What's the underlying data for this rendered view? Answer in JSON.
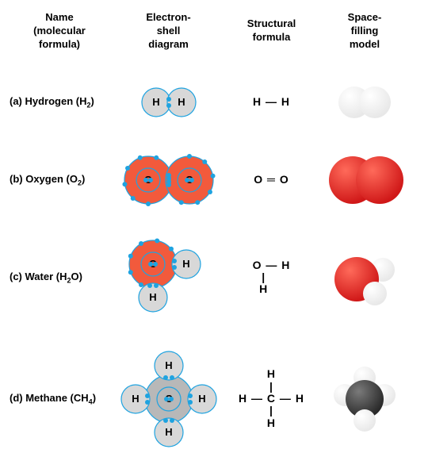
{
  "headers": {
    "name": "Name\n(molecular\nformula)",
    "shell": "Electron-\nshell\ndiagram",
    "struct": "Structural\nformula",
    "model": "Space-\nfilling\nmodel"
  },
  "colors": {
    "h_fill": "#d8d8d8",
    "o_fill": "#f25a3c",
    "c_fill": "#b8b8b8",
    "stroke": "#1fa3e0",
    "electron": "#1fa3e0",
    "model_h": "#e8e8e8",
    "model_h_hi": "#ffffff",
    "model_o": "#d01818",
    "model_o_hi": "#ff6a5a",
    "model_c": "#2a2a2a",
    "model_c_hi": "#7a7a7a",
    "text": "#000000"
  },
  "rows": [
    {
      "label_pre": "(a) Hydrogen (H",
      "label_sub": "2",
      "label_post": ")",
      "shell": "h2",
      "structural_lines": [
        "H — H"
      ],
      "model": "h2"
    },
    {
      "label_pre": "(b) Oxygen (O",
      "label_sub": "2",
      "label_post": ")",
      "shell": "o2",
      "structural_lines": [
        "O ═ O"
      ],
      "model": "o2"
    },
    {
      "label_pre": "(c) Water (H",
      "label_sub": "2",
      "label_post": "O)",
      "shell": "h2o",
      "structural_lines": [
        "O — H",
        "|    ",
        "H    "
      ],
      "model": "h2o"
    },
    {
      "label_pre": "(d) Methane (CH",
      "label_sub": "4",
      "label_post": ")",
      "shell": "ch4",
      "structural_lines": [
        "H",
        "|",
        "H — C — H",
        "|",
        "H"
      ],
      "model": "ch4"
    }
  ],
  "svg": {
    "atom_font": 13,
    "h_outer_r": 18,
    "o_outer_r": 30,
    "o_inner_r": 15,
    "c_outer_r": 30,
    "c_inner_r": 15,
    "electron_r": 3,
    "stroke_w": 1.2,
    "model_h_r": 20,
    "model_o_r": 30,
    "model_c_r": 24,
    "model_h_small_r": 15
  }
}
